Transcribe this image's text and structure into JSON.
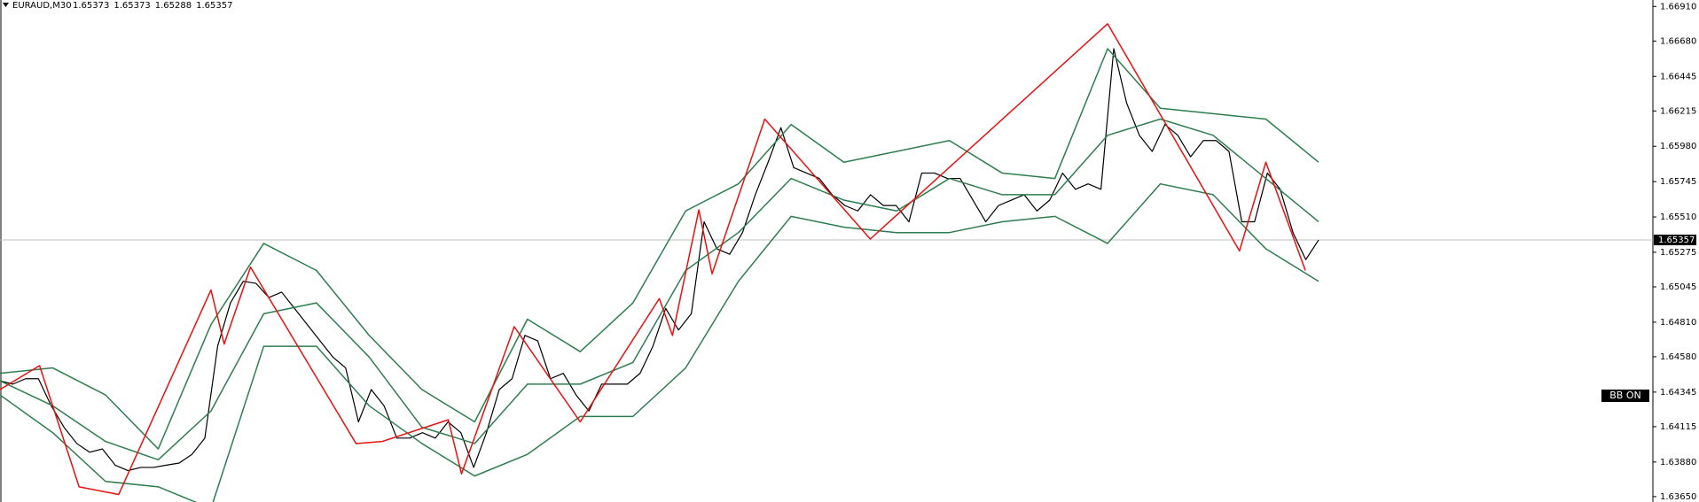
{
  "chart_data": {
    "type": "line",
    "symbol": "EURAUD,M30",
    "ohlc": [
      1.65373,
      1.65373,
      1.65288,
      1.65357
    ],
    "current_price": 1.65357,
    "indicator_label": "BB ON",
    "ylim": [
      1.63614,
      1.66953
    ],
    "yticks": [
      {
        "value": 1.6691,
        "label": "1.66910"
      },
      {
        "value": 1.6668,
        "label": "1.66680"
      },
      {
        "value": 1.66445,
        "label": "1.66445"
      },
      {
        "value": 1.66215,
        "label": "1.66215"
      },
      {
        "value": 1.6598,
        "label": "1.65980"
      },
      {
        "value": 1.65745,
        "label": "1.65745"
      },
      {
        "value": 1.6551,
        "label": "1.65510"
      },
      {
        "value": 1.65275,
        "label": "1.65275"
      },
      {
        "value": 1.65045,
        "label": "1.65045"
      },
      {
        "value": 1.6481,
        "label": "1.64810"
      },
      {
        "value": 1.6458,
        "label": "1.64580"
      },
      {
        "value": 1.64345,
        "label": "1.64345"
      },
      {
        "value": 1.64115,
        "label": "1.64115"
      },
      {
        "value": 1.6388,
        "label": "1.63880"
      },
      {
        "value": 1.6365,
        "label": "1.63650"
      }
    ],
    "series": [
      {
        "color": "#000000",
        "values": [
          1.6442,
          1.64398,
          1.64434,
          1.64434,
          1.64254,
          1.64111,
          1.64003,
          1.63945,
          1.63967,
          1.63859,
          1.63823,
          1.63844,
          1.63844,
          1.63859,
          1.63873,
          1.63931,
          1.64039,
          1.6465,
          1.64938,
          1.65082,
          1.65068,
          1.64974,
          1.6501,
          1.64902,
          1.64794,
          1.64686,
          1.64578,
          1.64506,
          1.64147,
          1.64362,
          1.64254,
          1.64039,
          1.64039,
          1.64075,
          1.64039,
          1.64147,
          1.64075,
          1.63844,
          1.64075,
          1.64362,
          1.64434,
          1.64722,
          1.64686,
          1.64434,
          1.6447,
          1.64326,
          1.64219,
          1.64398,
          1.64398,
          1.64398,
          1.6447,
          1.6465,
          1.64902,
          1.64758,
          1.64866,
          1.65478,
          1.65298,
          1.65262,
          1.65406,
          1.65658,
          1.65874,
          1.66104,
          1.65838,
          1.65802,
          1.65766,
          1.65658,
          1.65586,
          1.6555,
          1.65658,
          1.65586,
          1.65586,
          1.65478,
          1.65802,
          1.65802,
          1.65766,
          1.65766,
          1.65622,
          1.65478,
          1.65586,
          1.65622,
          1.65658,
          1.6555,
          1.65622,
          1.65802,
          1.65694,
          1.6573,
          1.65694,
          1.66629,
          1.66269,
          1.66053,
          1.65946,
          1.66125,
          1.66053,
          1.6591,
          1.66018,
          1.66018,
          1.65946,
          1.65478,
          1.65478,
          1.65802,
          1.65694,
          1.65406,
          1.65226,
          1.65357
        ]
      },
      {
        "color": "#2e7d4f",
        "values": [
          1.6447,
          1.64506,
          1.64326,
          1.63967,
          1.64794,
          1.65334,
          1.65154,
          1.64722,
          1.64362,
          1.64147,
          1.6483,
          1.64614,
          1.64938,
          1.6555,
          1.6573,
          1.66125,
          1.65874,
          1.65946,
          1.66018,
          1.65802,
          1.65766,
          1.66629,
          1.66233,
          1.66197,
          1.66161,
          1.65874
        ]
      },
      {
        "color": "#2e7d4f",
        "values": [
          1.6442,
          1.64254,
          1.64017,
          1.63895,
          1.64219,
          1.64866,
          1.64938,
          1.64578,
          1.64111,
          1.64003,
          1.64398,
          1.64398,
          1.64542,
          1.65154,
          1.65406,
          1.65766,
          1.65622,
          1.6555,
          1.65766,
          1.65658,
          1.65658,
          1.66053,
          1.66161,
          1.66053,
          1.65766,
          1.65478
        ]
      },
      {
        "color": "#2e7d4f",
        "values": [
          1.64326,
          1.64075,
          1.63751,
          1.63715,
          1.63571,
          1.6465,
          1.6465,
          1.64254,
          1.64003,
          1.63787,
          1.63931,
          1.64183,
          1.64183,
          1.64506,
          1.65082,
          1.65514,
          1.65442,
          1.65406,
          1.65406,
          1.65478,
          1.65514,
          1.65334,
          1.6573,
          1.65658,
          1.65298,
          1.65082
        ]
      },
      {
        "color": "#e81010",
        "x": [
          0,
          3,
          6,
          9,
          16,
          17,
          19,
          27,
          29,
          34,
          35,
          39,
          44,
          50,
          51,
          53,
          54,
          58,
          66,
          84,
          94,
          96,
          99
        ],
        "values": [
          1.64362,
          1.64521,
          1.63715,
          1.63664,
          1.65024,
          1.64665,
          1.65176,
          1.64003,
          1.64017,
          1.64161,
          1.63801,
          1.6478,
          1.64147,
          1.64967,
          1.64722,
          1.65557,
          1.65132,
          1.66161,
          1.65363,
          1.66795,
          1.65284,
          1.65874,
          1.65154
        ]
      }
    ]
  }
}
